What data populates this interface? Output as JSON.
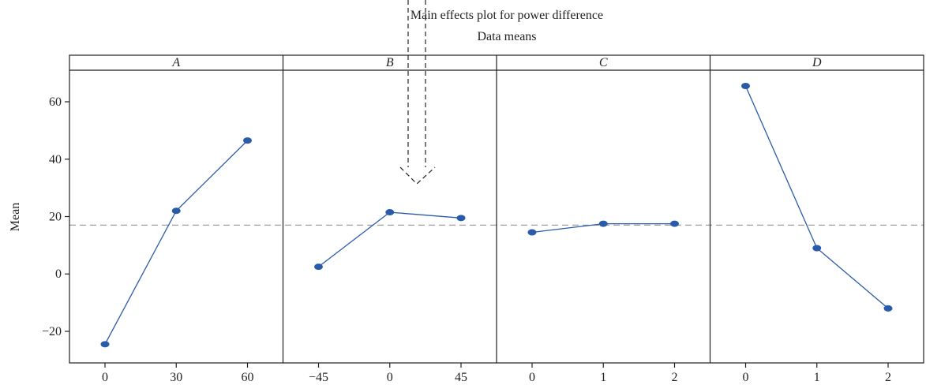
{
  "chart_data": {
    "type": "line",
    "title": "Main effects plot for power difference",
    "subtitle": "Data means",
    "ylabel": "Mean",
    "ylim": [
      -31,
      71
    ],
    "yticks": [
      -20,
      0,
      20,
      40,
      60
    ],
    "ytick_labels": [
      "−20",
      "0",
      "20",
      "40",
      "60"
    ],
    "reference_line": 17,
    "grid": false,
    "legend": "none",
    "colors": {
      "series": "#2a5ba8",
      "reference": "#a0a0a0",
      "frame": "#231f20",
      "arrow": "#231f20"
    },
    "panels": [
      {
        "factor": "A",
        "x": [
          "0",
          "30",
          "60"
        ],
        "values": [
          -24.5,
          22,
          46.5
        ]
      },
      {
        "factor": "B",
        "x": [
          "−45",
          "0",
          "45"
        ],
        "values": [
          2.5,
          21.5,
          19.5
        ]
      },
      {
        "factor": "C",
        "x": [
          "0",
          "1",
          "2"
        ],
        "values": [
          14.5,
          17.5,
          17.5
        ]
      },
      {
        "factor": "D",
        "x": [
          "0",
          "1",
          "2"
        ],
        "values": [
          65.5,
          9,
          -12
        ]
      }
    ]
  }
}
